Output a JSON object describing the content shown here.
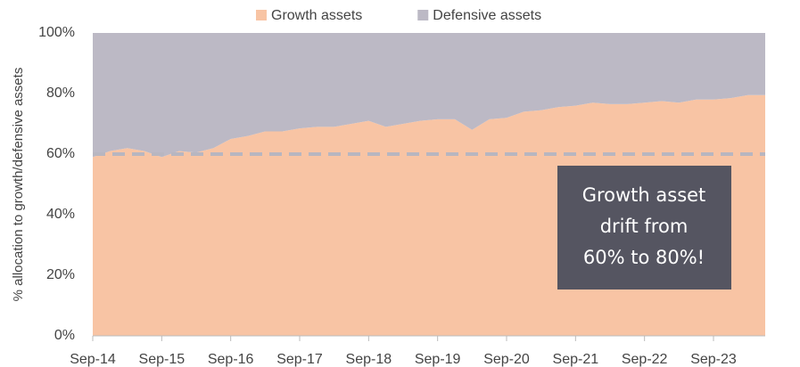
{
  "chart_data": {
    "type": "stacked_area",
    "y_label": "% allocation to growth/defensive assets",
    "categories": [
      "Sep-14",
      null,
      null,
      null,
      "Sep-15",
      null,
      null,
      null,
      "Sep-16",
      null,
      null,
      null,
      "Sep-17",
      null,
      null,
      null,
      "Sep-18",
      null,
      null,
      null,
      "Sep-19",
      null,
      null,
      null,
      "Sep-20",
      null,
      null,
      null,
      "Sep-21",
      null,
      null,
      null,
      "Sep-22",
      null,
      null,
      null,
      "Sep-23",
      null,
      null,
      null
    ],
    "series": [
      {
        "name": "Growth assets",
        "color": "#f8c4a4",
        "values": [
          59,
          61,
          62,
          61,
          59,
          61,
          60.5,
          62,
          65,
          66,
          67.5,
          67.5,
          68.5,
          69,
          69,
          70,
          71,
          69,
          70,
          71,
          71.5,
          71.5,
          68,
          71.5,
          72,
          74,
          74.5,
          75.5,
          76,
          77,
          76.5,
          76.5,
          77,
          77.5,
          77,
          78,
          78,
          78.5,
          79.5,
          79.5
        ]
      },
      {
        "name": "Defensive assets",
        "color": "#bcb9c5",
        "values": [
          41,
          39,
          38,
          39,
          41,
          39,
          39.5,
          38,
          35,
          34,
          32.5,
          32.5,
          31.5,
          31,
          31,
          30,
          29,
          31,
          30,
          29,
          28.5,
          28.5,
          32,
          28.5,
          28,
          26,
          25.5,
          24.5,
          24,
          23,
          23.5,
          23.5,
          23,
          22.5,
          23,
          22,
          22,
          21.5,
          20.5,
          20.5
        ]
      }
    ],
    "reference_line": 60,
    "annotation": [
      "Growth asset",
      "drift from",
      "60% to 80%!"
    ],
    "ylim": [
      0,
      100
    ],
    "yticks": [
      {
        "value": 0,
        "label": "0%"
      },
      {
        "value": 20,
        "label": "20%"
      },
      {
        "value": 40,
        "label": "40%"
      },
      {
        "value": 60,
        "label": "60%"
      },
      {
        "value": 80,
        "label": "80%"
      },
      {
        "value": 100,
        "label": "100%"
      }
    ],
    "legend": "top"
  }
}
